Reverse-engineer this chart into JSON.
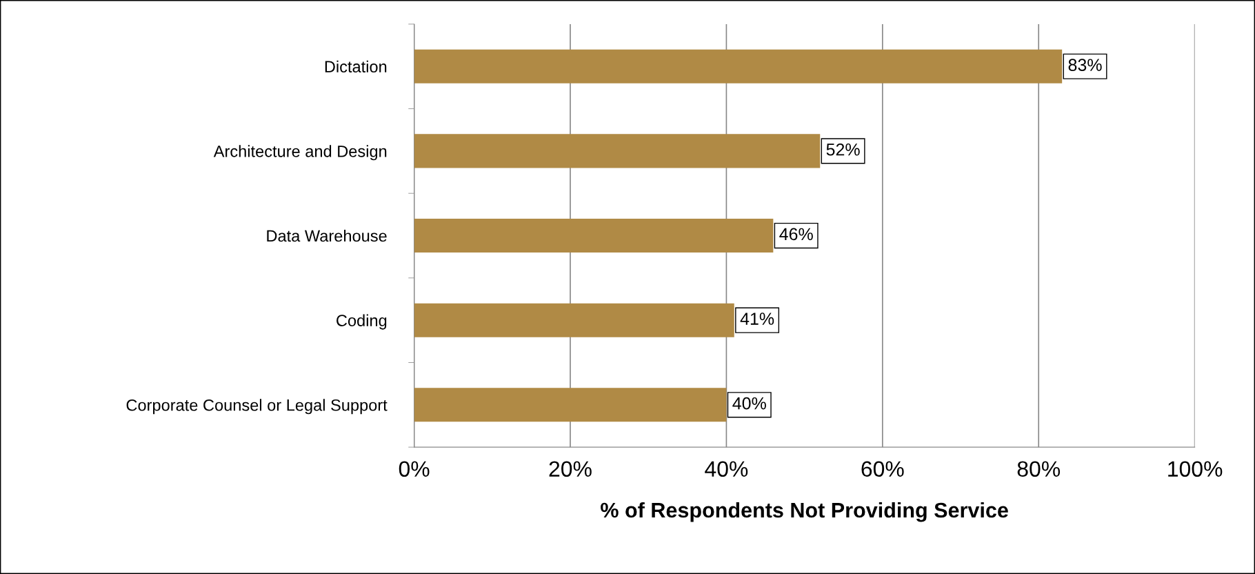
{
  "chart_data": {
    "type": "bar",
    "orientation": "horizontal",
    "xlabel": "% of Respondents Not Providing Service",
    "categories": [
      "Dictation",
      "Architecture and Design",
      "Data Warehouse",
      "Coding",
      "Corporate Counsel or Legal Support"
    ],
    "values": [
      83,
      52,
      46,
      41,
      40
    ],
    "value_labels": [
      "83%",
      "52%",
      "46%",
      "41%",
      "40%"
    ],
    "color": "#b08a45",
    "xlim": [
      0,
      100
    ],
    "xticks": [
      {
        "value": 0,
        "label": "0%"
      },
      {
        "value": 20,
        "label": "20%"
      },
      {
        "value": 40,
        "label": "40%"
      },
      {
        "value": 60,
        "label": "60%"
      },
      {
        "value": 80,
        "label": "80%"
      },
      {
        "value": 100,
        "label": "100%"
      }
    ],
    "grid": "x"
  }
}
